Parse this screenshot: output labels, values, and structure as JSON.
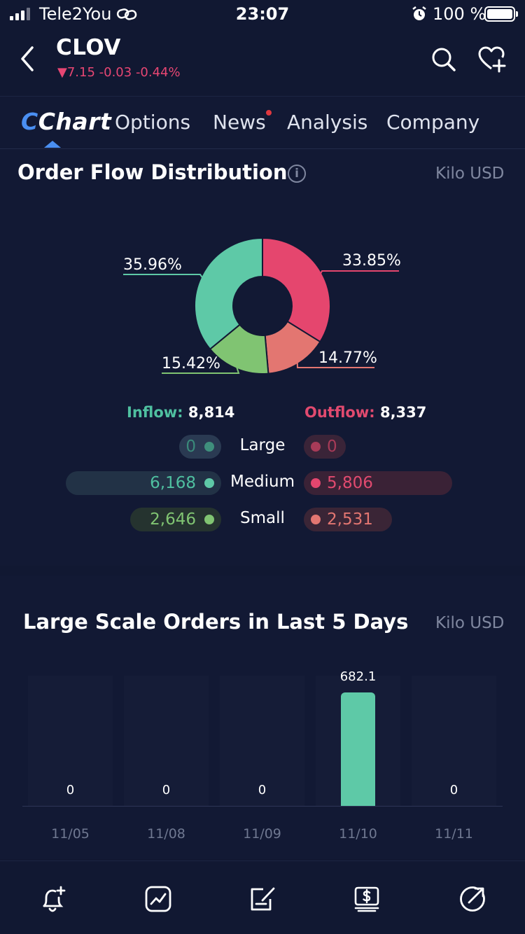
{
  "status_bar": {
    "carrier": "Tele2You",
    "time": "23:07",
    "battery": "100 %"
  },
  "header": {
    "ticker": "CLOV",
    "quote": "▼7.15 -0.03 -0.44%"
  },
  "tabs": [
    {
      "label": "Chart"
    },
    {
      "label": "Options"
    },
    {
      "label": "News"
    },
    {
      "label": "Analysis"
    },
    {
      "label": "Company"
    }
  ],
  "order_flow": {
    "title": "Order Flow Distribution",
    "unit": "Kilo USD",
    "slices": [
      {
        "label": "33.85%",
        "value": 33.85,
        "color": "#e5466e"
      },
      {
        "label": "14.77%",
        "value": 14.77,
        "color": "#e37671"
      },
      {
        "label": "15.42%",
        "value": 15.42,
        "color": "#80c472"
      },
      {
        "label": "35.96%",
        "value": 35.96,
        "color": "#5ec9a7"
      }
    ],
    "inflow": {
      "label": "Inflow:",
      "value": "8,814",
      "color": "#4fc0a0"
    },
    "outflow": {
      "label": "Outflow:",
      "value": "8,337",
      "color": "#e14a6f"
    },
    "rows": [
      {
        "label": "Large",
        "inflow": "0",
        "outflow": "0",
        "inflow_share": 0,
        "outflow_share": 0
      },
      {
        "label": "Medium",
        "inflow": "6,168",
        "outflow": "5,806",
        "inflow_share": 1.0,
        "outflow_share": 0.94
      },
      {
        "label": "Small",
        "inflow": "2,646",
        "outflow": "2,531",
        "inflow_share": 0.43,
        "outflow_share": 0.41
      }
    ]
  },
  "large_orders": {
    "title": "Large Scale Orders in Last 5 Days",
    "unit": "Kilo USD",
    "chart_data": {
      "type": "bar",
      "categories": [
        "11/05",
        "11/08",
        "11/09",
        "11/10",
        "11/11"
      ],
      "values": [
        0,
        0,
        0,
        682.1,
        0
      ],
      "value_labels": [
        "0",
        "0",
        "0",
        "682.1",
        "0"
      ],
      "color": "#5ec9a7"
    }
  },
  "toolbar": [
    "bell-plus-icon",
    "trend-icon",
    "edit-note-icon",
    "dollar-stack-icon",
    "share-icon"
  ]
}
